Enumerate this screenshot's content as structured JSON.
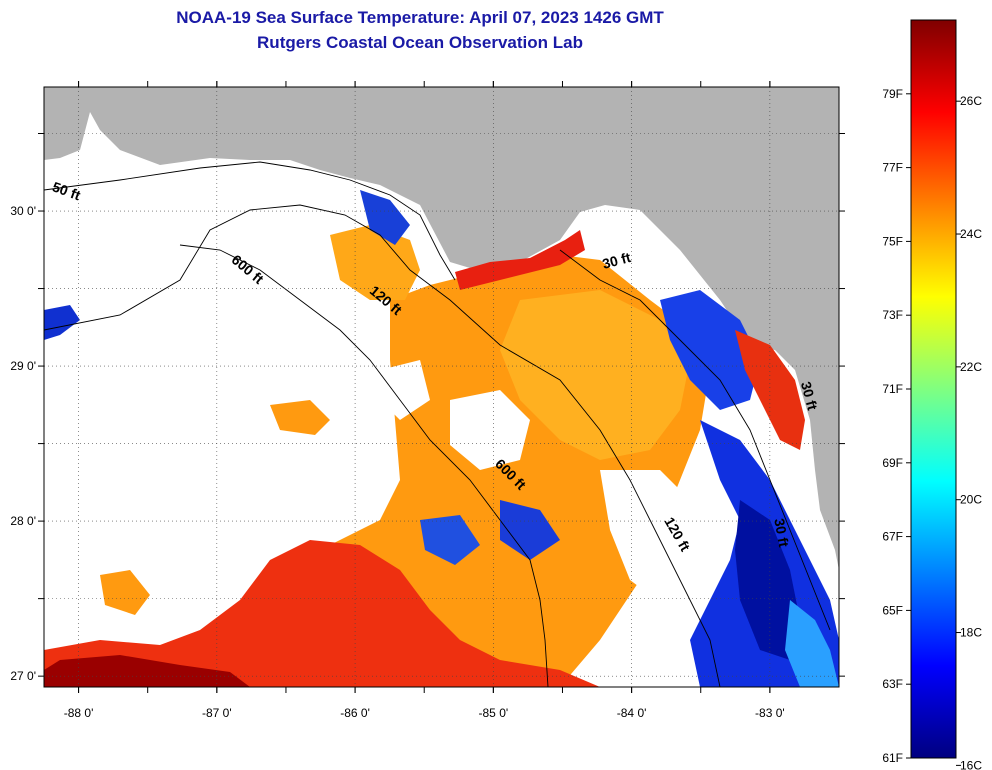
{
  "title": {
    "line1": "NOAA-19 Sea Surface Temperature:  April 07, 2023 1426 GMT",
    "line2": "Rutgers Coastal Ocean Observation Lab"
  },
  "map": {
    "lon_min": -88.25,
    "lon_max": -82.5,
    "lat_min": 26.93,
    "lat_max": 30.8,
    "lat_ticks": [
      {
        "value": 30,
        "label": "30 0'"
      },
      {
        "value": 29,
        "label": "29 0'"
      },
      {
        "value": 28,
        "label": "28 0'"
      },
      {
        "value": 27,
        "label": "27 0'"
      }
    ],
    "lon_ticks": [
      {
        "value": -88,
        "label": "-88 0'"
      },
      {
        "value": -87,
        "label": "-87 0'"
      },
      {
        "value": -86,
        "label": "-86 0'"
      },
      {
        "value": -85,
        "label": "-85 0'"
      },
      {
        "value": -84,
        "label": "-84 0'"
      },
      {
        "value": -83,
        "label": "-83 0'"
      }
    ],
    "contour_labels": [
      {
        "text": "50 ft",
        "lon": -88.1,
        "lat": 30.1,
        "angle": 20
      },
      {
        "text": "600 ft",
        "lon": -86.8,
        "lat": 29.6,
        "angle": 40
      },
      {
        "text": "120 ft",
        "lon": -85.8,
        "lat": 29.4,
        "angle": 40
      },
      {
        "text": "30 ft",
        "lon": -84.1,
        "lat": 29.65,
        "angle": -15
      },
      {
        "text": "600 ft",
        "lon": -84.9,
        "lat": 28.28,
        "angle": 45
      },
      {
        "text": "120 ft",
        "lon": -83.7,
        "lat": 27.9,
        "angle": 60
      },
      {
        "text": "30 ft",
        "lon": -82.95,
        "lat": 27.92,
        "angle": 80
      },
      {
        "text": "30 ft",
        "lon": -82.75,
        "lat": 28.8,
        "angle": 75
      }
    ],
    "colors": {
      "land": "#b3b3b3",
      "cloud": "#ffffff",
      "contour": "#000000"
    }
  },
  "colorbar": {
    "min_f": 61,
    "max_f": 81,
    "f_labels": [
      "79F",
      "77F",
      "75F",
      "73F",
      "71F",
      "69F",
      "67F",
      "65F",
      "63F",
      "61F"
    ],
    "f_values": [
      79,
      77,
      75,
      73,
      71,
      69,
      67,
      65,
      63,
      61
    ],
    "c_labels": [
      "26C",
      "24C",
      "22C",
      "20C",
      "18C",
      "16C"
    ],
    "c_values": [
      26,
      24,
      22,
      20,
      18,
      16
    ],
    "stops": [
      "#7f0000",
      "#ff0000",
      "#ff8000",
      "#ffff00",
      "#80ff80",
      "#00ffff",
      "#0080ff",
      "#0000ff",
      "#000080"
    ]
  }
}
